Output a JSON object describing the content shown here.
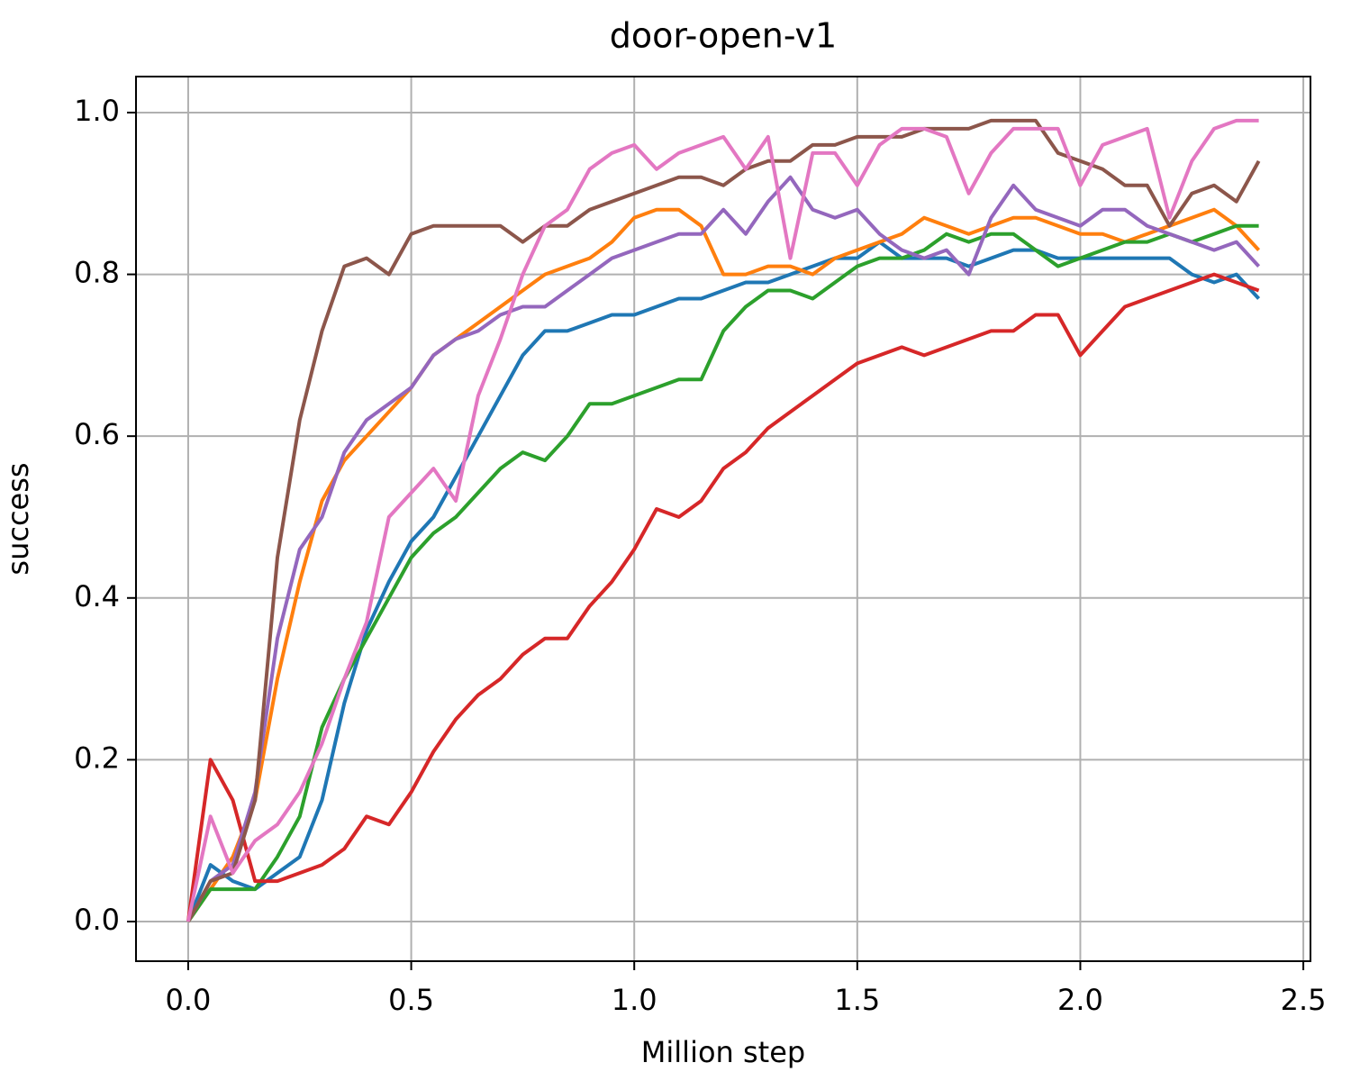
{
  "chart_data": {
    "type": "line",
    "title": "door-open-v1",
    "x_label": "Million step",
    "y_label": "success",
    "x": [
      0,
      0.05,
      0.1,
      0.15,
      0.2,
      0.25,
      0.3,
      0.35,
      0.4,
      0.45,
      0.5,
      0.55,
      0.6,
      0.65,
      0.7,
      0.75,
      0.8,
      0.85,
      0.9,
      0.95,
      1.0,
      1.05,
      1.1,
      1.15,
      1.2,
      1.25,
      1.3,
      1.35,
      1.4,
      1.45,
      1.5,
      1.55,
      1.6,
      1.65,
      1.7,
      1.75,
      1.8,
      1.85,
      1.9,
      1.95,
      2.0,
      2.05,
      2.1,
      2.15,
      2.2,
      2.25,
      2.3,
      2.35,
      2.4
    ],
    "series": [
      {
        "color": "#1f77b4",
        "values": [
          0,
          0.07,
          0.05,
          0.04,
          0.06,
          0.08,
          0.15,
          0.27,
          0.36,
          0.42,
          0.47,
          0.5,
          0.55,
          0.6,
          0.65,
          0.7,
          0.73,
          0.73,
          0.74,
          0.75,
          0.75,
          0.76,
          0.77,
          0.77,
          0.78,
          0.79,
          0.79,
          0.8,
          0.81,
          0.82,
          0.82,
          0.84,
          0.82,
          0.82,
          0.82,
          0.81,
          0.82,
          0.83,
          0.83,
          0.82,
          0.82,
          0.82,
          0.82,
          0.82,
          0.82,
          0.8,
          0.79,
          0.8,
          0.77
        ]
      },
      {
        "color": "#ff7f0e",
        "values": [
          0,
          0.04,
          0.08,
          0.15,
          0.3,
          0.42,
          0.52,
          0.57,
          0.6,
          0.63,
          0.66,
          0.7,
          0.72,
          0.74,
          0.76,
          0.78,
          0.8,
          0.81,
          0.82,
          0.84,
          0.87,
          0.88,
          0.88,
          0.86,
          0.8,
          0.8,
          0.81,
          0.81,
          0.8,
          0.82,
          0.83,
          0.84,
          0.85,
          0.87,
          0.86,
          0.85,
          0.86,
          0.87,
          0.87,
          0.86,
          0.85,
          0.85,
          0.84,
          0.85,
          0.86,
          0.87,
          0.88,
          0.86,
          0.83
        ]
      },
      {
        "color": "#2ca02c",
        "values": [
          0,
          0.04,
          0.04,
          0.04,
          0.08,
          0.13,
          0.24,
          0.3,
          0.35,
          0.4,
          0.45,
          0.48,
          0.5,
          0.53,
          0.56,
          0.58,
          0.57,
          0.6,
          0.64,
          0.64,
          0.65,
          0.66,
          0.67,
          0.67,
          0.73,
          0.76,
          0.78,
          0.78,
          0.77,
          0.79,
          0.81,
          0.82,
          0.82,
          0.83,
          0.85,
          0.84,
          0.85,
          0.85,
          0.83,
          0.81,
          0.82,
          0.83,
          0.84,
          0.84,
          0.85,
          0.84,
          0.85,
          0.86,
          0.86
        ]
      },
      {
        "color": "#d62728",
        "values": [
          0,
          0.2,
          0.15,
          0.05,
          0.05,
          0.06,
          0.07,
          0.09,
          0.13,
          0.12,
          0.16,
          0.21,
          0.25,
          0.28,
          0.3,
          0.33,
          0.35,
          0.35,
          0.39,
          0.42,
          0.46,
          0.51,
          0.5,
          0.52,
          0.56,
          0.58,
          0.61,
          0.63,
          0.65,
          0.67,
          0.69,
          0.7,
          0.71,
          0.7,
          0.71,
          0.72,
          0.73,
          0.73,
          0.75,
          0.75,
          0.7,
          0.73,
          0.76,
          0.77,
          0.78,
          0.79,
          0.8,
          0.79,
          0.78
        ]
      },
      {
        "color": "#9467bd",
        "values": [
          0,
          0.05,
          0.07,
          0.16,
          0.35,
          0.46,
          0.5,
          0.58,
          0.62,
          0.64,
          0.66,
          0.7,
          0.72,
          0.73,
          0.75,
          0.76,
          0.76,
          0.78,
          0.8,
          0.82,
          0.83,
          0.84,
          0.85,
          0.85,
          0.88,
          0.85,
          0.89,
          0.92,
          0.88,
          0.87,
          0.88,
          0.85,
          0.83,
          0.82,
          0.83,
          0.8,
          0.87,
          0.91,
          0.88,
          0.87,
          0.86,
          0.88,
          0.88,
          0.86,
          0.85,
          0.84,
          0.83,
          0.84,
          0.81
        ]
      },
      {
        "color": "#8c564b",
        "values": [
          0,
          0.05,
          0.06,
          0.15,
          0.45,
          0.62,
          0.73,
          0.81,
          0.82,
          0.8,
          0.85,
          0.86,
          0.86,
          0.86,
          0.86,
          0.84,
          0.86,
          0.86,
          0.88,
          0.89,
          0.9,
          0.91,
          0.92,
          0.92,
          0.91,
          0.93,
          0.94,
          0.94,
          0.96,
          0.96,
          0.97,
          0.97,
          0.97,
          0.98,
          0.98,
          0.98,
          0.99,
          0.99,
          0.99,
          0.95,
          0.94,
          0.93,
          0.91,
          0.91,
          0.86,
          0.9,
          0.91,
          0.89,
          0.94
        ]
      },
      {
        "color": "#e377c2",
        "values": [
          0,
          0.13,
          0.06,
          0.1,
          0.12,
          0.16,
          0.22,
          0.3,
          0.37,
          0.5,
          0.53,
          0.56,
          0.52,
          0.65,
          0.72,
          0.8,
          0.86,
          0.88,
          0.93,
          0.95,
          0.96,
          0.93,
          0.95,
          0.96,
          0.97,
          0.93,
          0.97,
          0.82,
          0.95,
          0.95,
          0.91,
          0.96,
          0.98,
          0.98,
          0.97,
          0.9,
          0.95,
          0.98,
          0.98,
          0.98,
          0.91,
          0.96,
          0.97,
          0.98,
          0.87,
          0.94,
          0.98,
          0.99,
          0.99
        ]
      }
    ],
    "xlim": [
      -0.117,
      2.516
    ],
    "ylim": [
      -0.049,
      1.0445
    ],
    "xticks": [
      {
        "value": 0,
        "label": "0.0"
      },
      0.5,
      {
        "value": 1,
        "label": "1.0"
      },
      1.5,
      {
        "value": 2,
        "label": "2.0"
      },
      2.5
    ],
    "yticks": [
      {
        "value": 0,
        "label": "0.0"
      },
      0.2,
      0.4,
      0.6,
      0.8,
      {
        "value": 1,
        "label": "1.0"
      }
    ],
    "grid": true
  }
}
